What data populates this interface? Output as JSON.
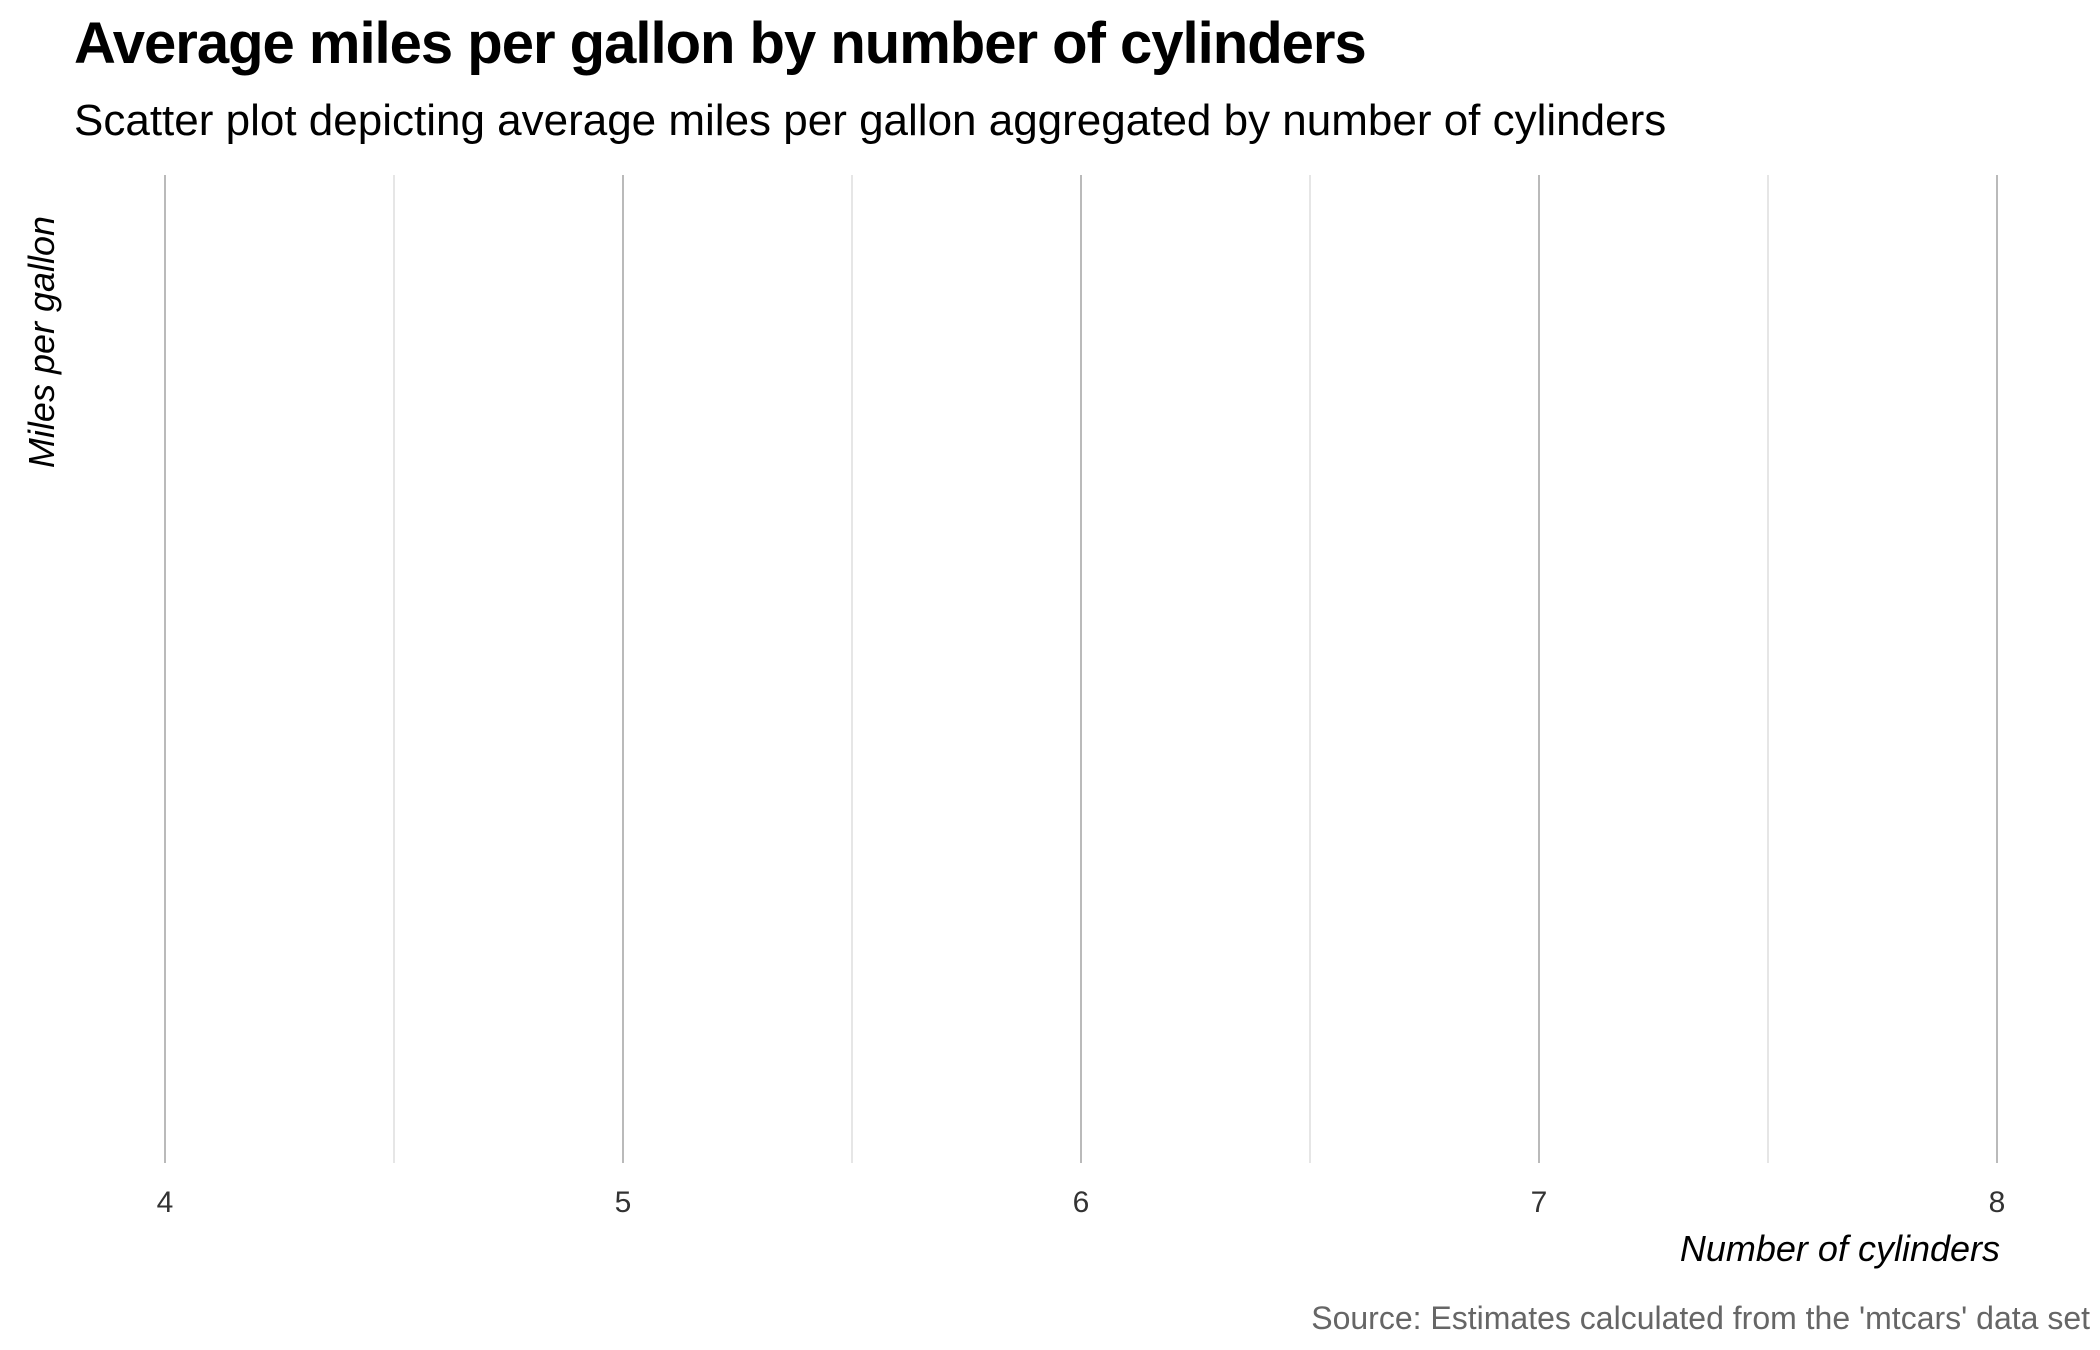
{
  "chart_data": {
    "type": "scatter",
    "title": "Average miles per gallon by number of cylinders",
    "subtitle": "Scatter plot depicting average miles per gallon aggregated by number of cylinders",
    "xlabel": "Number of cylinders",
    "ylabel": "Miles per gallon",
    "caption": "Source: Estimates calculated from the 'mtcars' data set",
    "xlim": [
      4,
      8
    ],
    "x_ticks": [
      4,
      5,
      6,
      7,
      8
    ],
    "x_minor_ticks": [
      4.5,
      5.5,
      6.5,
      7.5
    ],
    "series": [
      {
        "x": [],
        "y": []
      }
    ],
    "grid": "vertical",
    "colors": {
      "major_grid": "#b3b3b3",
      "minor_grid": "#dedede",
      "tick_label": "#333333",
      "caption": "#666666"
    }
  }
}
